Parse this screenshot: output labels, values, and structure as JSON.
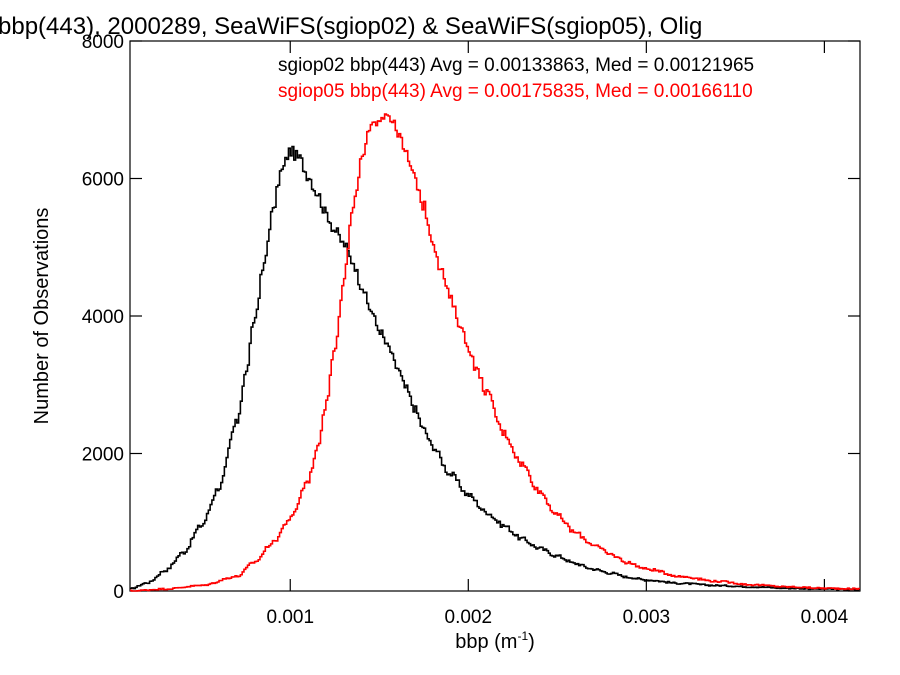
{
  "chart_data": {
    "type": "line",
    "step": true,
    "title": "bbp(443), 2000289, SeaWiFS(sgiop02) & SeaWiFS(sgiop05), Olig",
    "xlabel": "bbp (m",
    "xlabel_sup": "-1",
    "xlabel_end": ")",
    "ylabel": "Number of Observations",
    "xlim": [
      0.0001,
      0.0042
    ],
    "ylim": [
      0,
      8000
    ],
    "x_ticks": [
      {
        "value": 0.001,
        "label": "0.001"
      },
      {
        "value": 0.002,
        "label": "0.002"
      },
      {
        "value": 0.003,
        "label": "0.003"
      },
      {
        "value": 0.004,
        "label": "0.004"
      }
    ],
    "y_ticks": [
      {
        "value": 0,
        "label": "0"
      },
      {
        "value": 2000,
        "label": "2000"
      },
      {
        "value": 4000,
        "label": "4000"
      },
      {
        "value": 6000,
        "label": "6000"
      },
      {
        "value": 8000,
        "label": "8000"
      }
    ],
    "grid": false,
    "annotations": [
      {
        "text": "sgiop02 bbp(443) Avg = 0.00133863, Med = 0.00121965",
        "color": "#000000"
      },
      {
        "text": "sgiop05 bbp(443) Avg = 0.00175835, Med = 0.00166110",
        "color": "#ff0000"
      }
    ],
    "series": [
      {
        "color": "#000000",
        "x": [
          0.0001,
          0.0002,
          0.0003,
          0.0004,
          0.0005,
          0.0006,
          0.0007,
          0.00075,
          0.0008,
          0.00085,
          0.0009,
          0.00095,
          0.001,
          0.00105,
          0.0011,
          0.00115,
          0.0012,
          0.00125,
          0.0013,
          0.00135,
          0.0014,
          0.00145,
          0.0015,
          0.00155,
          0.0016,
          0.00165,
          0.0017,
          0.00175,
          0.0018,
          0.0019,
          0.002,
          0.0021,
          0.0022,
          0.0023,
          0.0024,
          0.0025,
          0.0026,
          0.0027,
          0.0028,
          0.0029,
          0.003,
          0.0032,
          0.0034,
          0.0036,
          0.0038,
          0.004,
          0.0042
        ],
        "y": [
          30,
          120,
          300,
          560,
          950,
          1500,
          2450,
          3150,
          3950,
          4700,
          5500,
          6100,
          6400,
          6300,
          6050,
          5800,
          5500,
          5250,
          5050,
          4800,
          4450,
          4100,
          3800,
          3550,
          3250,
          2950,
          2650,
          2350,
          2100,
          1700,
          1400,
          1150,
          950,
          760,
          620,
          510,
          400,
          320,
          260,
          200,
          160,
          110,
          80,
          60,
          40,
          30,
          20
        ]
      },
      {
        "color": "#ff0000",
        "x": [
          0.0001,
          0.0003,
          0.0005,
          0.0007,
          0.0008,
          0.0009,
          0.001,
          0.0011,
          0.00115,
          0.0012,
          0.00125,
          0.0013,
          0.00135,
          0.0014,
          0.00145,
          0.0015,
          0.00155,
          0.0016,
          0.00165,
          0.0017,
          0.00175,
          0.0018,
          0.00185,
          0.0019,
          0.00195,
          0.002,
          0.00205,
          0.0021,
          0.0022,
          0.0023,
          0.0024,
          0.0025,
          0.0026,
          0.0027,
          0.0028,
          0.0029,
          0.003,
          0.0032,
          0.0034,
          0.0036,
          0.0038,
          0.004,
          0.0042
        ],
        "y": [
          0,
          30,
          80,
          210,
          420,
          700,
          1050,
          1600,
          2050,
          2700,
          3550,
          4500,
          5500,
          6250,
          6700,
          6900,
          6950,
          6700,
          6350,
          6000,
          5600,
          5100,
          4650,
          4250,
          3900,
          3550,
          3200,
          2900,
          2300,
          1850,
          1450,
          1100,
          850,
          680,
          530,
          410,
          320,
          210,
          140,
          90,
          60,
          40,
          30
        ]
      }
    ]
  }
}
